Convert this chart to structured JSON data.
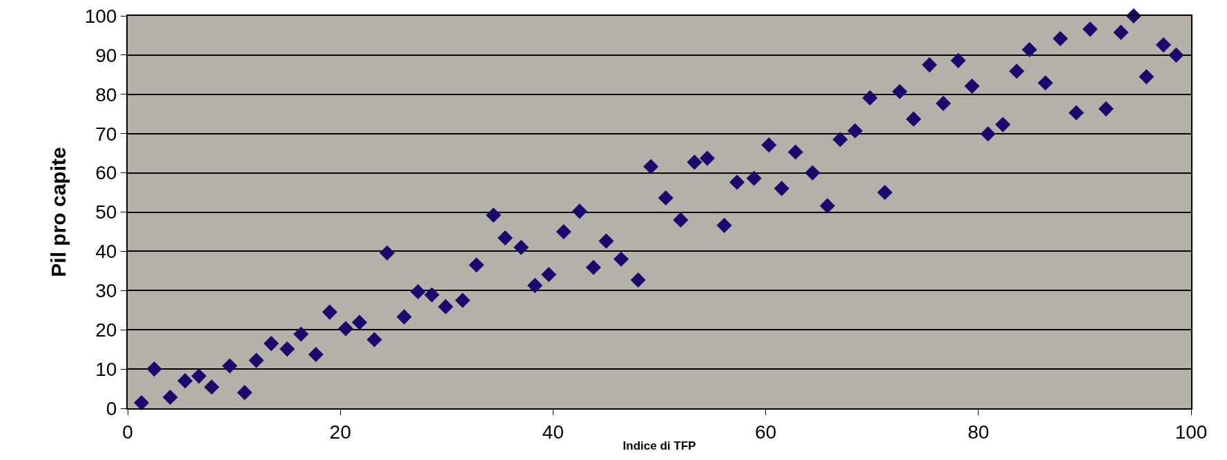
{
  "chart_data": {
    "type": "scatter",
    "xlabel": "Indice di TFP",
    "ylabel": "Pil pro capite",
    "marker": "diamond",
    "grid": "y",
    "xlim": [
      0,
      100
    ],
    "xticks": [
      0,
      20,
      40,
      60,
      80,
      100
    ],
    "ylim": [
      0,
      100
    ],
    "yticks": [
      0,
      10,
      20,
      30,
      40,
      50,
      60,
      70,
      80,
      90,
      100
    ],
    "series": [
      {
        "color": "#1a0a6e",
        "x": [
          1.3,
          2.5,
          4,
          5.4,
          6.7,
          7.9,
          9.6,
          11,
          12.1,
          13.5,
          15,
          16.3,
          17.7,
          19,
          20.5,
          21.8,
          23.2,
          24.4,
          26,
          27.3,
          28.6,
          29.9,
          31.5,
          32.8,
          34.4,
          35.5,
          37,
          38.3,
          39.6,
          41,
          42.5,
          43.8,
          45,
          46.4,
          48,
          49.2,
          50.6,
          52,
          53.3,
          54.5,
          56.1,
          57.3,
          58.9,
          60.3,
          61.5,
          62.8,
          64.4,
          65.8,
          67,
          68.4,
          69.8,
          71.2,
          72.6,
          73.9,
          75.4,
          76.7,
          78.1,
          79.4,
          80.9,
          82.3,
          83.6,
          84.8,
          86.3,
          87.7,
          89.2,
          90.5,
          92,
          93.4,
          94.6,
          95.8,
          97.4,
          98.6
        ],
        "values": [
          1.4,
          10,
          2.8,
          7,
          8.2,
          5.4,
          10.8,
          4,
          12.2,
          16.5,
          15.1,
          18.9,
          13.7,
          24.5,
          20.3,
          21.9,
          17.5,
          39.6,
          23.3,
          29.7,
          28.9,
          25.9,
          27.5,
          36.5,
          49.2,
          43.4,
          41,
          31.3,
          34.1,
          45,
          50.2,
          35.9,
          42.6,
          38,
          32.7,
          61.6,
          53.6,
          48,
          62.7,
          63.7,
          46.6,
          57.6,
          58.6,
          67.1,
          56,
          65.3,
          60,
          51.6,
          68.5,
          70.7,
          79.1,
          55,
          80.7,
          73.7,
          87.5,
          77.7,
          88.6,
          82.1,
          69.9,
          72.3,
          85.9,
          91.4,
          82.9,
          94.2,
          75.3,
          96.6,
          76.3,
          95.8,
          100,
          84.5,
          92.6,
          90
        ]
      }
    ]
  }
}
